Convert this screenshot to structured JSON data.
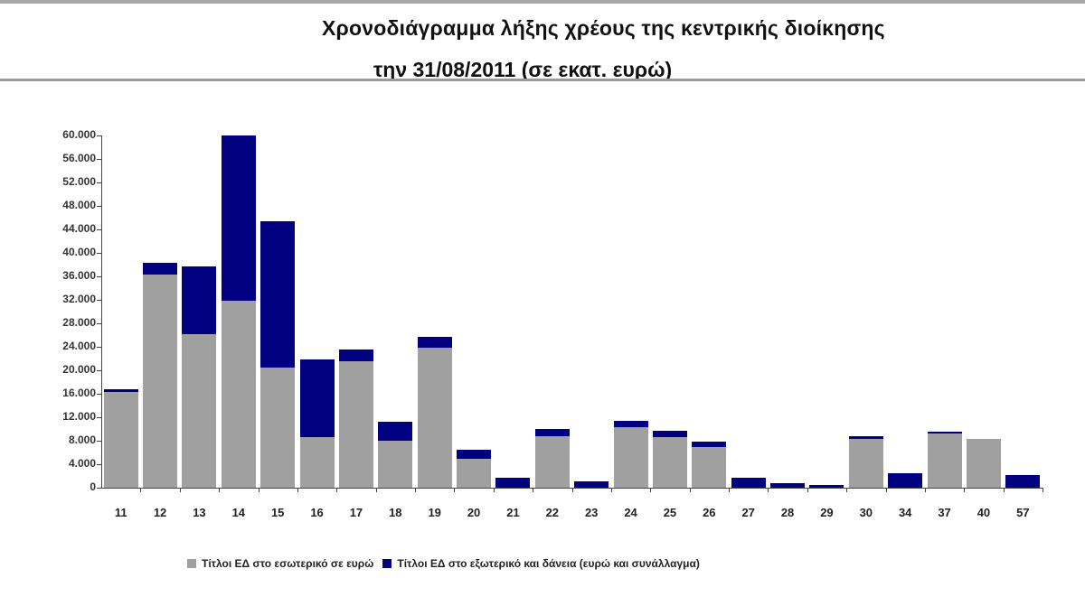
{
  "title": {
    "line1": "Χρονοδιάγραμμα λήξης χρέους της κεντρικής διοίκησης",
    "line2": "την 31/08/2011 (σε εκατ. ευρώ)"
  },
  "colors": {
    "domestic": "#a0a0a0",
    "foreign": "#000080"
  },
  "legend": {
    "domestic_label": "Τίτλοι ΕΔ στο εσωτερικό σε ευρώ",
    "foreign_label": "Τίτλοι ΕΔ στο εξωτερικό και δάνεια (ευρώ και συνάλλαγμα)"
  },
  "yaxis": {
    "ticks": [
      "0",
      "4.000",
      "8.000",
      "12.000",
      "16.000",
      "20.000",
      "24.000",
      "28.000",
      "32.000",
      "36.000",
      "40.000",
      "44.000",
      "48.000",
      "52.000",
      "56.000",
      "60.000"
    ]
  },
  "chart_data": {
    "type": "bar",
    "stacked": true,
    "title": "Χρονοδιάγραμμα λήξης χρέους της κεντρικής διοίκησης την 31/08/2011 (σε εκατ. ευρώ)",
    "xlabel": "",
    "ylabel": "",
    "ylim": [
      0,
      60000
    ],
    "ytick_step": 4000,
    "grid": false,
    "legend_position": "bottom",
    "categories": [
      "11",
      "12",
      "13",
      "14",
      "15",
      "16",
      "17",
      "18",
      "19",
      "20",
      "21",
      "22",
      "23",
      "24",
      "25",
      "26",
      "27",
      "28",
      "29",
      "30",
      "34",
      "37",
      "40",
      "57"
    ],
    "series": [
      {
        "name": "Τίτλοι ΕΔ στο εσωτερικό σε ευρώ",
        "color": "#a0a0a0",
        "values": [
          16300,
          36300,
          26100,
          31800,
          20500,
          8600,
          21500,
          8000,
          23800,
          5000,
          0,
          8800,
          0,
          10300,
          8600,
          6900,
          0,
          0,
          0,
          8300,
          0,
          9200,
          8300,
          0
        ]
      },
      {
        "name": "Τίτλοι ΕΔ στο εξωτερικό και δάνεια (ευρώ και συνάλλαγμα)",
        "color": "#000080",
        "values": [
          500,
          2000,
          11600,
          28200,
          24900,
          13200,
          2000,
          3200,
          1900,
          1500,
          1700,
          1200,
          1100,
          1100,
          1100,
          900,
          1700,
          700,
          400,
          400,
          2400,
          300,
          0,
          2100
        ]
      }
    ]
  }
}
